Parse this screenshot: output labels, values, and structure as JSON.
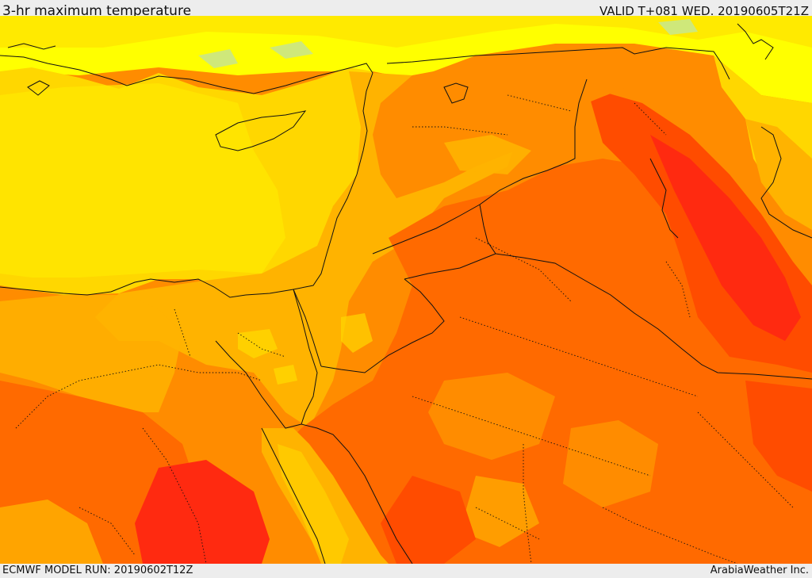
{
  "header": {
    "title": "3-hr maximum temperature",
    "valid_time": "VALID T+081 WED. 20190605T21Z"
  },
  "footer": {
    "model_run": "ECMWF MODEL RUN: 20190602T12Z",
    "credit": "ArabiaWeather Inc."
  },
  "map": {
    "field": "3-hr maximum temperature",
    "colors": {
      "light_green": "#cfe87a",
      "yellow": "#ffff00",
      "light_gold": "#ffe800",
      "gold": "#ffd700",
      "amber": "#ffb300",
      "orange": "#ff8c00",
      "dark_orange": "#ff6a00",
      "red_orange": "#ff4c00",
      "red": "#ff2a10",
      "border": "#111111"
    }
  }
}
